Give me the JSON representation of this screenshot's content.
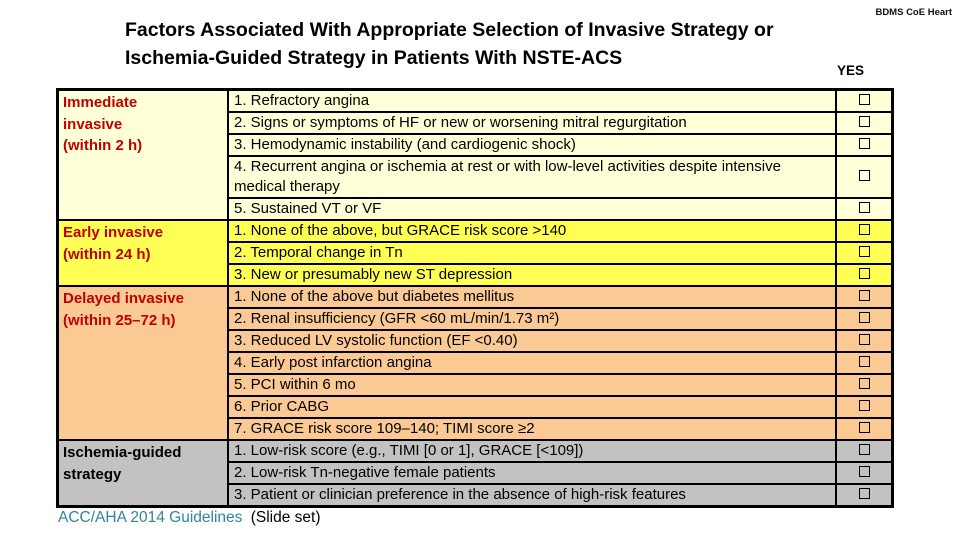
{
  "page": {
    "watermark": "BDMS CoE Heart",
    "title_line1": "Factors Associated With Appropriate Selection of Invasive Strategy or",
    "title_line2": "Ischemia-Guided Strategy in Patients With NSTE-ACS",
    "yes_header": "YES",
    "footer_link": "ACC/AHA 2014 Guidelines",
    "footer_suffix": "(Slide set)"
  },
  "colors": {
    "category_red": "#C00000",
    "group1_bg": "#FFFFD8",
    "group2_bg": "#FFFF54",
    "group3_bg": "#FBCA94",
    "group4_bg": "#C2C2C2",
    "border": "#000000",
    "footer_link_blue": "#31849B"
  },
  "table": {
    "groups": [
      {
        "label": "Immediate invasive (within 2 h)",
        "label_lines": [
          "Immediate",
          "invasive",
          "(within 2 h)"
        ],
        "items": [
          "1. Refractory angina",
          "2. Signs or symptoms of HF or new or worsening mitral regurgitation",
          "3. Hemodynamic instability (and cardiogenic shock)",
          "4. Recurrent angina or ischemia at rest or with low-level activities despite intensive medical therapy",
          "5. Sustained VT or VF"
        ]
      },
      {
        "label": "Early invasive (within 24 h)",
        "label_lines": [
          "Early invasive",
          "(within 24 h)"
        ],
        "items": [
          "1. None of the above, but GRACE risk score >140",
          "2. Temporal change in Tn",
          "3. New or presumably new ST depression"
        ]
      },
      {
        "label": "Delayed invasive (within 25–72 h)",
        "label_lines": [
          "Delayed invasive",
          "(within 25–72 h)"
        ],
        "items": [
          "1. None of the above but diabetes mellitus",
          "2. Renal insufficiency (GFR <60 mL/min/1.73 m²)",
          "3. Reduced LV systolic function (EF <0.40)",
          "4. Early post infarction angina",
          "5. PCI within 6 mo",
          "6. Prior CABG",
          "7. GRACE risk score 109–140; TIMI score ≥2"
        ]
      },
      {
        "label": "Ischemia-guided strategy",
        "label_lines": [
          "Ischemia-guided",
          "strategy"
        ],
        "items": [
          "1. Low-risk score (e.g., TIMI [0 or 1], GRACE [<109])",
          "2. Low-risk Tn-negative female patients",
          "3. Patient or clinician preference in the absence of high-risk features"
        ]
      }
    ]
  }
}
